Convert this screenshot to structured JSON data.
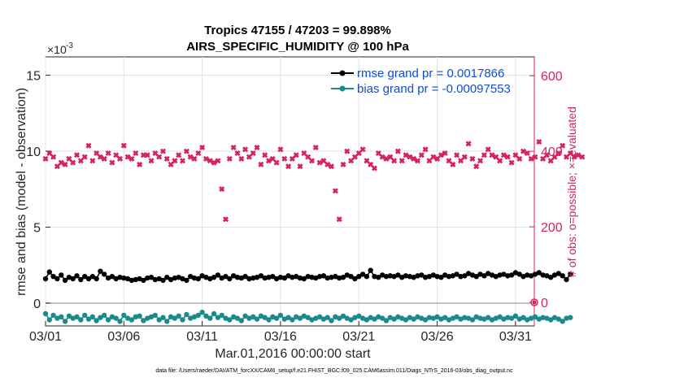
{
  "chart_data": {
    "type": "scatter",
    "title_line1": "Tropics 47155 / 47203 = 99.898%",
    "title_line2": "AIRS_SPECIFIC_HUMIDITY @ 100 hPa",
    "xlabel": "Mar.01,2016 00:00:00 start",
    "ylabel_left": "rmse and bias (model - observation)",
    "ylabel_right": "# of obs: o=possible; ×=evaluated",
    "y_exponent_base": "×10",
    "y_exponent_power": "-3",
    "x_range_days": [
      0,
      31.2
    ],
    "ylim_left": [
      -0.0015,
      0.0162
    ],
    "ylim_right": [
      -62.5,
      650
    ],
    "x_ticks": [
      {
        "day": 0,
        "label": "03/01"
      },
      {
        "day": 5,
        "label": "03/06"
      },
      {
        "day": 10,
        "label": "03/11"
      },
      {
        "day": 15,
        "label": "03/16"
      },
      {
        "day": 20,
        "label": "03/21"
      },
      {
        "day": 25,
        "label": "03/26"
      },
      {
        "day": 30,
        "label": "03/31"
      }
    ],
    "y_ticks_left": [
      {
        "value": 0,
        "label": "0"
      },
      {
        "value": 0.005,
        "label": "5"
      },
      {
        "value": 0.01,
        "label": "10"
      },
      {
        "value": 0.015,
        "label": "15"
      }
    ],
    "y_ticks_right": [
      {
        "value": 0,
        "label": "0"
      },
      {
        "value": 200,
        "label": "200"
      },
      {
        "value": 400,
        "label": "400"
      },
      {
        "value": 600,
        "label": "600"
      }
    ],
    "legend": [
      {
        "label": "rmse grand pr = 0.0017866",
        "color": "#000000"
      },
      {
        "label": "bias grand pr = -0.00097553",
        "color": "#1b8a8a"
      }
    ],
    "series": [
      {
        "name": "rmse",
        "color": "#000000",
        "x_start_day": 0,
        "x_step_day": 0.25,
        "values": [
          0.0016,
          0.00205,
          0.00175,
          0.0016,
          0.00185,
          0.0015,
          0.0017,
          0.0016,
          0.0018,
          0.00155,
          0.00175,
          0.0016,
          0.00175,
          0.0016,
          0.0021,
          0.0019,
          0.00165,
          0.00175,
          0.0016,
          0.0017,
          0.00165,
          0.0016,
          0.0015,
          0.00155,
          0.0016,
          0.0015,
          0.00165,
          0.0017,
          0.00155,
          0.0016,
          0.0015,
          0.0017,
          0.00155,
          0.00165,
          0.0017,
          0.0016,
          0.0015,
          0.00175,
          0.00165,
          0.0016,
          0.0018,
          0.0017,
          0.0016,
          0.0017,
          0.00185,
          0.00165,
          0.00175,
          0.0016,
          0.0018,
          0.0017,
          0.00165,
          0.00175,
          0.0016,
          0.00165,
          0.0017,
          0.0018,
          0.00165,
          0.0017,
          0.00175,
          0.0016,
          0.0017,
          0.00165,
          0.0018,
          0.0017,
          0.00175,
          0.00165,
          0.0016,
          0.00175,
          0.0017,
          0.00165,
          0.00175,
          0.0018,
          0.00165,
          0.0017,
          0.00175,
          0.00165,
          0.0017,
          0.00185,
          0.00175,
          0.0016,
          0.00175,
          0.0019,
          0.00175,
          0.00215,
          0.00175,
          0.0017,
          0.00185,
          0.00175,
          0.0018,
          0.00175,
          0.00185,
          0.0017,
          0.0018,
          0.00175,
          0.0017,
          0.0018,
          0.00185,
          0.0017,
          0.00175,
          0.00185,
          0.00175,
          0.0017,
          0.00185,
          0.00175,
          0.0018,
          0.0019,
          0.00175,
          0.0018,
          0.00195,
          0.00185,
          0.00175,
          0.0019,
          0.0018,
          0.00195,
          0.00185,
          0.00175,
          0.00185,
          0.0019,
          0.0018,
          0.00185,
          0.002,
          0.0019,
          0.00175,
          0.00185,
          0.0018,
          0.0019,
          0.002,
          0.00185,
          0.0018,
          0.0017,
          0.00185,
          0.00195,
          0.0018,
          0.00155,
          0.0019
        ]
      },
      {
        "name": "bias",
        "color": "#1b8a8a",
        "x_start_day": 0,
        "x_step_day": 0.25,
        "values": [
          -0.0007,
          -0.0011,
          -0.0008,
          -0.001,
          -0.0009,
          -0.0012,
          -0.00085,
          -0.001,
          -0.0009,
          -0.0011,
          -0.0008,
          -0.00105,
          -0.0009,
          -0.00115,
          -0.00095,
          -0.0008,
          -0.0011,
          -0.0009,
          -0.001,
          -0.0012,
          -0.0008,
          -0.001,
          -0.0011,
          -0.0009,
          -0.00085,
          -0.00115,
          -0.001,
          -0.0009,
          -0.0008,
          -0.0011,
          -0.00095,
          -0.0012,
          -0.0009,
          -0.001,
          -0.00085,
          -0.0011,
          -0.00075,
          -0.001,
          -0.0009,
          -0.0008,
          -0.0006,
          -0.00085,
          -0.001,
          -0.0007,
          -0.00095,
          -0.0008,
          -0.001,
          -0.0011,
          -0.0009,
          -0.001,
          -0.00115,
          -0.00085,
          -0.001,
          -0.0009,
          -0.00105,
          -0.00085,
          -0.00095,
          -0.0011,
          -0.0009,
          -0.001,
          -0.0008,
          -0.00105,
          -0.00095,
          -0.0011,
          -0.0009,
          -0.001,
          -0.00085,
          -0.00095,
          -0.0011,
          -0.001,
          -0.0009,
          -0.00105,
          -0.00095,
          -0.00115,
          -0.0009,
          -0.001,
          -0.00085,
          -0.001,
          -0.0011,
          -0.00095,
          -0.00085,
          -0.001,
          -0.0011,
          -0.00095,
          -0.00105,
          -0.0009,
          -0.001,
          -0.00115,
          -0.00095,
          -0.00105,
          -0.0009,
          -0.001,
          -0.0011,
          -0.00095,
          -0.00105,
          -0.0009,
          -0.001,
          -0.0011,
          -0.00095,
          -0.001,
          -0.0009,
          -0.00105,
          -0.00095,
          -0.0011,
          -0.001,
          -0.0009,
          -0.00105,
          -0.00095,
          -0.001,
          -0.0011,
          -0.0009,
          -0.001,
          -0.00105,
          -0.00095,
          -0.0011,
          -0.001,
          -0.0009,
          -0.00105,
          -0.00095,
          -0.001,
          -0.00085,
          -0.00105,
          -0.00095,
          -0.0011,
          -0.001,
          -0.0009,
          -0.00105,
          -0.00095,
          -0.001,
          -0.0011,
          -0.00095,
          -0.00105,
          -0.0012,
          -0.001,
          -0.00095
        ]
      },
      {
        "name": "obs count",
        "axis": "right",
        "color": "#d62263",
        "x_start_day": 0,
        "x_step_day": 0.25,
        "values": [
          380,
          395,
          385,
          360,
          370,
          365,
          380,
          370,
          390,
          375,
          385,
          415,
          375,
          395,
          385,
          380,
          395,
          370,
          390,
          380,
          415,
          385,
          380,
          395,
          365,
          390,
          390,
          375,
          395,
          385,
          400,
          380,
          365,
          375,
          390,
          375,
          400,
          385,
          380,
          395,
          410,
          380,
          375,
          370,
          375,
          300,
          220,
          380,
          410,
          395,
          380,
          405,
          385,
          395,
          410,
          365,
          390,
          375,
          380,
          370,
          405,
          380,
          360,
          380,
          390,
          360,
          395,
          385,
          375,
          410,
          370,
          375,
          365,
          360,
          295,
          220,
          365,
          400,
          375,
          385,
          395,
          405,
          375,
          365,
          355,
          395,
          385,
          380,
          385,
          375,
          400,
          375,
          390,
          385,
          380,
          375,
          390,
          405,
          375,
          385,
          380,
          390,
          395,
          375,
          365,
          390,
          375,
          385,
          420,
          380,
          360,
          375,
          390,
          405,
          390,
          385,
          375,
          390,
          385,
          370,
          390,
          380,
          400,
          395,
          380,
          385,
          425,
          380,
          390,
          375,
          385,
          395,
          415,
          385,
          395,
          385,
          390,
          385
        ]
      }
    ],
    "obs_possible_marker": {
      "day": 31.2,
      "value": 0,
      "color": "#d62263"
    }
  },
  "footnote": "data file: /Users/raeder/DAI/ATM_forcXX/CAM6_setup/f.e21.FHIST_BGC.f09_025.CAM6assim.011/Diags_NTrS_2016-03/obs_diag_output.nc"
}
